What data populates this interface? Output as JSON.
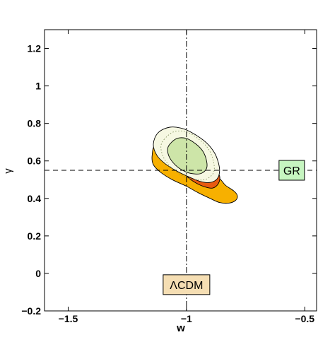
{
  "chart_data": {
    "type": "contour",
    "xlabel": "w",
    "ylabel": "γ",
    "xlim": [
      -1.6,
      -0.45
    ],
    "ylim": [
      -0.2,
      1.3
    ],
    "x_ticks": [
      -1.5,
      -1,
      -0.5
    ],
    "x_tick_labels": [
      "−1.5",
      "−1",
      "−0.5"
    ],
    "y_ticks": [
      -0.2,
      0,
      0.2,
      0.4,
      0.6,
      0.8,
      1,
      1.2
    ],
    "y_tick_labels": [
      "−0.2",
      "0",
      "0.2",
      "0.4",
      "0.6",
      "0.8",
      "1",
      "1.2"
    ],
    "grid": false,
    "reference_lines": [
      {
        "orientation": "vertical",
        "value": -1,
        "style": "dash-dot"
      },
      {
        "orientation": "horizontal",
        "value": 0.55,
        "style": "dashed"
      }
    ],
    "annotations": [
      {
        "text": "GR",
        "x": -0.555,
        "y": 0.55,
        "color": "#c6f5c0"
      },
      {
        "text": "ΛCDM",
        "x": -1.0,
        "y": -0.06,
        "color": "#f5deb3"
      }
    ],
    "contours": [
      {
        "fill": "#f7b000",
        "points": [
          [
            -1.13,
            0.68
          ],
          [
            -1.06,
            0.63
          ],
          [
            -1.0,
            0.585
          ],
          [
            -0.94,
            0.55
          ],
          [
            -0.9,
            0.53
          ],
          [
            -0.86,
            0.505
          ],
          [
            -0.835,
            0.47
          ],
          [
            -0.8,
            0.44
          ],
          [
            -0.785,
            0.415
          ],
          [
            -0.792,
            0.39
          ],
          [
            -0.82,
            0.375
          ],
          [
            -0.86,
            0.378
          ],
          [
            -0.9,
            0.4
          ],
          [
            -0.95,
            0.43
          ],
          [
            -1.0,
            0.465
          ],
          [
            -1.06,
            0.5
          ],
          [
            -1.11,
            0.54
          ],
          [
            -1.14,
            0.58
          ],
          [
            -1.145,
            0.63
          ]
        ]
      },
      {
        "fill": "#e85a10",
        "points": [
          [
            -1.0,
            0.66
          ],
          [
            -0.93,
            0.6
          ],
          [
            -0.88,
            0.56
          ],
          [
            -0.86,
            0.52
          ],
          [
            -0.865,
            0.48
          ],
          [
            -0.89,
            0.455
          ],
          [
            -0.93,
            0.465
          ],
          [
            -0.97,
            0.49
          ],
          [
            -1.0,
            0.52
          ],
          [
            -1.03,
            0.56
          ]
        ]
      },
      {
        "fill": "#f6f8e2",
        "points": [
          [
            -1.12,
            0.75
          ],
          [
            -1.07,
            0.78
          ],
          [
            -1.01,
            0.77
          ],
          [
            -0.95,
            0.73
          ],
          [
            -0.91,
            0.69
          ],
          [
            -0.88,
            0.64
          ],
          [
            -0.865,
            0.59
          ],
          [
            -0.86,
            0.545
          ],
          [
            -0.87,
            0.505
          ],
          [
            -0.9,
            0.485
          ],
          [
            -0.94,
            0.49
          ],
          [
            -0.99,
            0.515
          ],
          [
            -1.04,
            0.545
          ],
          [
            -1.09,
            0.585
          ],
          [
            -1.125,
            0.63
          ],
          [
            -1.14,
            0.69
          ]
        ]
      },
      {
        "fill": "#cde5a8",
        "points": [
          [
            -1.07,
            0.69
          ],
          [
            -1.04,
            0.72
          ],
          [
            -1.0,
            0.72
          ],
          [
            -0.96,
            0.69
          ],
          [
            -0.93,
            0.65
          ],
          [
            -0.915,
            0.6
          ],
          [
            -0.915,
            0.56
          ],
          [
            -0.935,
            0.535
          ],
          [
            -0.96,
            0.53
          ],
          [
            -1.0,
            0.54
          ],
          [
            -1.04,
            0.57
          ],
          [
            -1.07,
            0.615
          ],
          [
            -1.08,
            0.66
          ]
        ]
      }
    ]
  }
}
